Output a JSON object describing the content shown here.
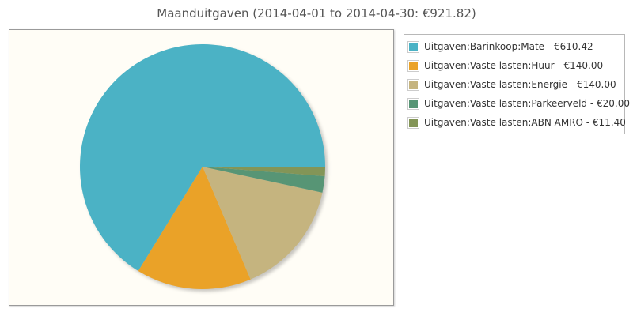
{
  "chart_data": {
    "type": "pie",
    "title": "Maanduitgaven (2014-04-01 to 2014-04-30: €921.82)",
    "slices": [
      {
        "label": "Uitgaven:Barinkoop:Mate - €610.42",
        "value": 610.42,
        "color": "#4bb2c5"
      },
      {
        "label": "Uitgaven:Vaste lasten:Huur - €140.00",
        "value": 140.0,
        "color": "#eaa228"
      },
      {
        "label": "Uitgaven:Vaste lasten:Energie - €140.00",
        "value": 140.0,
        "color": "#c5b47f"
      },
      {
        "label": "Uitgaven:Vaste lasten:Parkeerveld - €20.00",
        "value": 20.0,
        "color": "#579575"
      },
      {
        "label": "Uitgaven:Vaste lasten:ABN AMRO - €11.40",
        "value": 11.4,
        "color": "#839557"
      }
    ],
    "legend_position": "right"
  },
  "colors": {
    "plot_background": "#fffdf6",
    "title_color": "#555555"
  }
}
